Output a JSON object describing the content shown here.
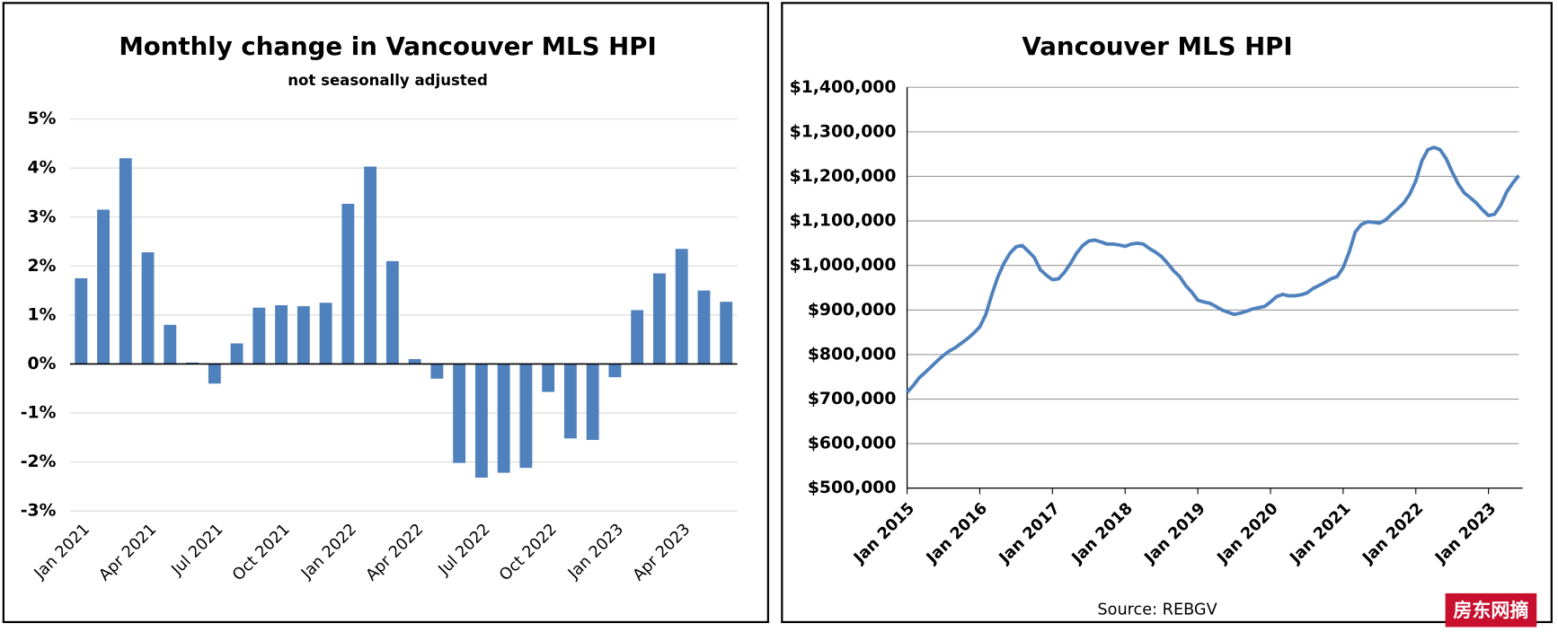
{
  "chart_data": [
    {
      "type": "bar",
      "title": "Monthly change in Vancouver MLS HPI",
      "subtitle": "not seasonally adjusted",
      "categories": [
        "Jan 2021",
        null,
        null,
        "Apr 2021",
        null,
        null,
        "Jul 2021",
        null,
        null,
        "Oct 2021",
        null,
        null,
        "Jan 2022",
        null,
        null,
        "Apr 2022",
        null,
        null,
        "Jul 2022",
        null,
        null,
        "Oct 2022",
        null,
        null,
        "Jan 2023",
        null,
        null,
        "Apr 2023",
        null,
        null
      ],
      "values": [
        1.75,
        3.15,
        4.2,
        2.28,
        0.8,
        0.03,
        -0.4,
        0.42,
        1.15,
        1.2,
        1.18,
        1.25,
        3.27,
        4.03,
        2.1,
        0.1,
        -0.3,
        -2.02,
        -2.32,
        -2.22,
        -2.12,
        -0.57,
        -1.52,
        -1.55,
        -0.27,
        1.1,
        1.85,
        2.35,
        1.5,
        1.27
      ],
      "color": "#4f81bd",
      "ylim": [
        -3,
        5
      ],
      "yticks": [
        {
          "value": -3,
          "label": "-3%"
        },
        {
          "value": -2,
          "label": "-2%"
        },
        {
          "value": -1,
          "label": "-1%"
        },
        {
          "value": 0,
          "label": "0%"
        },
        {
          "value": 1,
          "label": "1%"
        },
        {
          "value": 2,
          "label": "2%"
        },
        {
          "value": 3,
          "label": "3%"
        },
        {
          "value": 4,
          "label": "4%"
        },
        {
          "value": 5,
          "label": "5%"
        }
      ],
      "grid": true
    },
    {
      "type": "line",
      "title": "Vancouver MLS HPI",
      "source": "Source: REBGV",
      "categories": [
        "Jan 2015",
        null,
        null,
        null,
        null,
        null,
        null,
        null,
        null,
        null,
        null,
        null,
        "Jan 2016",
        null,
        null,
        null,
        null,
        null,
        null,
        null,
        null,
        null,
        null,
        null,
        "Jan 2017",
        null,
        null,
        null,
        null,
        null,
        null,
        null,
        null,
        null,
        null,
        null,
        "Jan 2018",
        null,
        null,
        null,
        null,
        null,
        null,
        null,
        null,
        null,
        null,
        null,
        "Jan 2019",
        null,
        null,
        null,
        null,
        null,
        null,
        null,
        null,
        null,
        null,
        null,
        "Jan 2020",
        null,
        null,
        null,
        null,
        null,
        null,
        null,
        null,
        null,
        null,
        null,
        "Jan 2021",
        null,
        null,
        null,
        null,
        null,
        null,
        null,
        null,
        null,
        null,
        null,
        "Jan 2022",
        null,
        null,
        null,
        null,
        null,
        null,
        null,
        null,
        null,
        null,
        null,
        "Jan 2023",
        null,
        null,
        null,
        null,
        null
      ],
      "values": [
        715000,
        730000,
        748000,
        760000,
        773000,
        786000,
        798000,
        808000,
        816000,
        826000,
        836000,
        848000,
        862000,
        890000,
        935000,
        975000,
        1005000,
        1028000,
        1042000,
        1045000,
        1032000,
        1018000,
        990000,
        978000,
        968000,
        970000,
        985000,
        1005000,
        1028000,
        1045000,
        1055000,
        1057000,
        1053000,
        1048000,
        1048000,
        1046000,
        1043000,
        1048000,
        1050000,
        1048000,
        1038000,
        1030000,
        1020000,
        1005000,
        988000,
        975000,
        955000,
        940000,
        922000,
        918000,
        915000,
        908000,
        900000,
        895000,
        890000,
        893000,
        897000,
        902000,
        905000,
        908000,
        918000,
        930000,
        935000,
        932000,
        932000,
        934000,
        938000,
        948000,
        955000,
        962000,
        970000,
        975000,
        995000,
        1030000,
        1075000,
        1092000,
        1098000,
        1097000,
        1095000,
        1102000,
        1115000,
        1127000,
        1140000,
        1160000,
        1190000,
        1235000,
        1260000,
        1265000,
        1260000,
        1240000,
        1210000,
        1183000,
        1163000,
        1152000,
        1140000,
        1125000,
        1112000,
        1115000,
        1135000,
        1165000,
        1185000,
        1202000
      ],
      "color": "#4f81bd",
      "ylim": [
        500000,
        1400000
      ],
      "yticks": [
        {
          "value": 500000,
          "label": "$500,000"
        },
        {
          "value": 600000,
          "label": "$600,000"
        },
        {
          "value": 700000,
          "label": "$700,000"
        },
        {
          "value": 800000,
          "label": "$800,000"
        },
        {
          "value": 900000,
          "label": "$900,000"
        },
        {
          "value": 1000000,
          "label": "$1,000,000"
        },
        {
          "value": 1100000,
          "label": "$1,100,000"
        },
        {
          "value": 1200000,
          "label": "$1,200,000"
        },
        {
          "value": 1300000,
          "label": "$1,300,000"
        },
        {
          "value": 1400000,
          "label": "$1,400,000"
        }
      ],
      "grid": true
    }
  ],
  "watermark": "房东网摘"
}
